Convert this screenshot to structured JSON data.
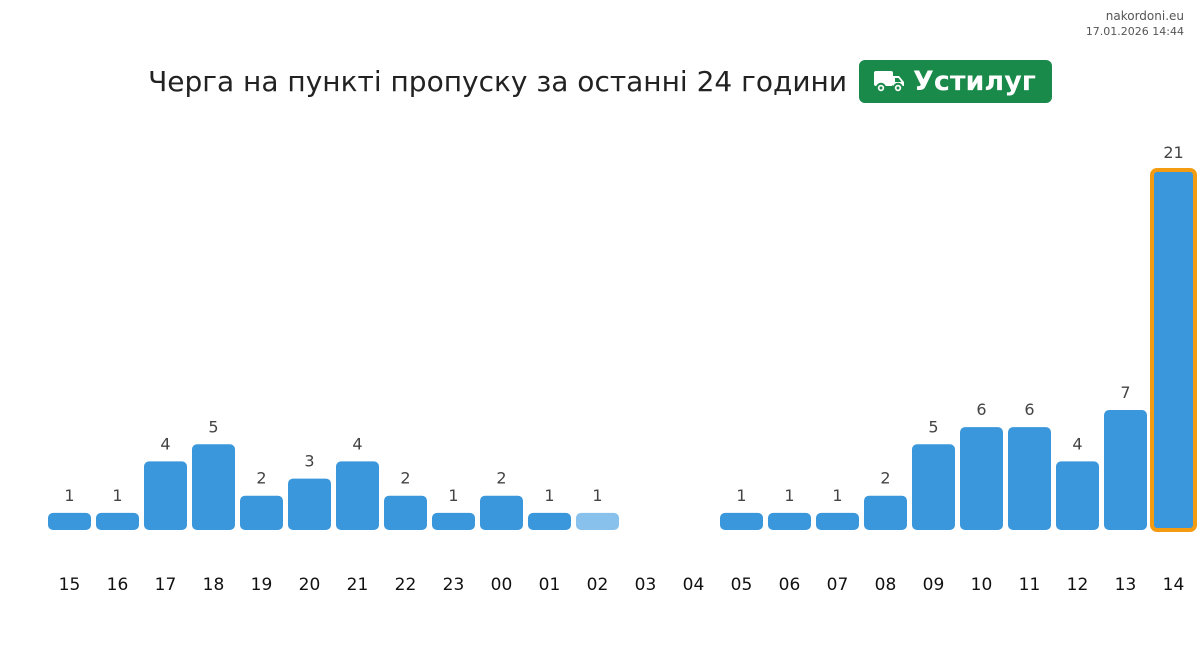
{
  "header": {
    "site": "nakordoni.eu",
    "timestamp": "17.01.2026 14:44",
    "title": "Черга на пункті пропуску за останні 24 години",
    "checkpoint": "Устилуг",
    "checkpoint_icon": "truck-icon"
  },
  "colors": {
    "bar": "#3a97dc",
    "bar_light": "#88c1eb",
    "highlight_border": "#f39c12",
    "badge": "#1a8a4a"
  },
  "chart_data": {
    "type": "bar",
    "categories": [
      "15",
      "16",
      "17",
      "18",
      "19",
      "20",
      "21",
      "22",
      "23",
      "00",
      "01",
      "02",
      "03",
      "04",
      "05",
      "06",
      "07",
      "08",
      "09",
      "10",
      "11",
      "12",
      "13",
      "14"
    ],
    "values": [
      1,
      1,
      4,
      5,
      2,
      3,
      4,
      2,
      1,
      2,
      1,
      1,
      null,
      null,
      1,
      1,
      1,
      2,
      5,
      6,
      6,
      4,
      7,
      21
    ],
    "highlighted_category": "14",
    "light_category": "02",
    "grid": false,
    "legend": "none",
    "ylim": [
      0,
      21
    ],
    "title": "Черга на пункті пропуску за останні 24 години",
    "xlabel": "",
    "ylabel": ""
  }
}
